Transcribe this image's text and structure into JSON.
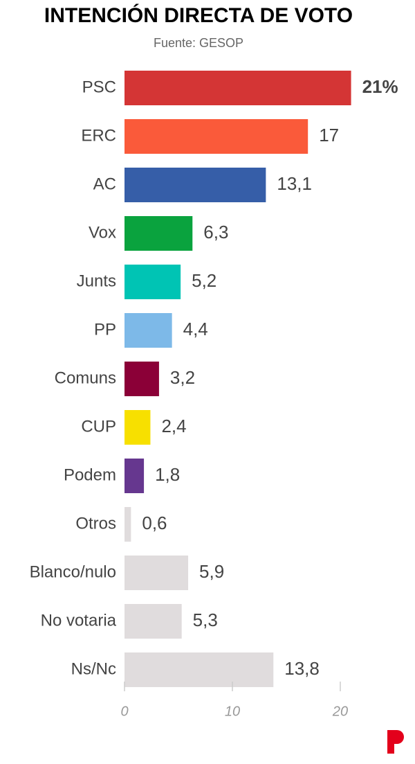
{
  "chart_data": {
    "type": "bar",
    "orientation": "horizontal",
    "title": "INTENCIÓN DIRECTA DE VOTO",
    "subtitle": "Fuente: GESOP",
    "categories": [
      "PSC",
      "ERC",
      "AC",
      "Vox",
      "Junts",
      "PP",
      "Comuns",
      "CUP",
      "Podem",
      "Otros",
      "Blanco/nulo",
      "No votaria",
      "Ns/Nc"
    ],
    "values": [
      21,
      17,
      13.1,
      6.3,
      5.2,
      4.4,
      3.2,
      2.4,
      1.8,
      0.6,
      5.9,
      5.3,
      13.8
    ],
    "value_labels": [
      "21%",
      "17",
      "13,1",
      "6,3",
      "5,2",
      "4,4",
      "3,2",
      "2,4",
      "1,8",
      "0,6",
      "5,9",
      "5,3",
      "13,8"
    ],
    "colors": [
      "#d43535",
      "#fa5a3a",
      "#365ea8",
      "#0aa33e",
      "#00c4b4",
      "#7db9e8",
      "#8b0037",
      "#f7e000",
      "#66378f",
      "#e0dcdd",
      "#e0dcdd",
      "#e0dcdd",
      "#e0dcdd"
    ],
    "xlim": [
      0,
      20
    ],
    "xticks": [
      0,
      10,
      20
    ]
  }
}
